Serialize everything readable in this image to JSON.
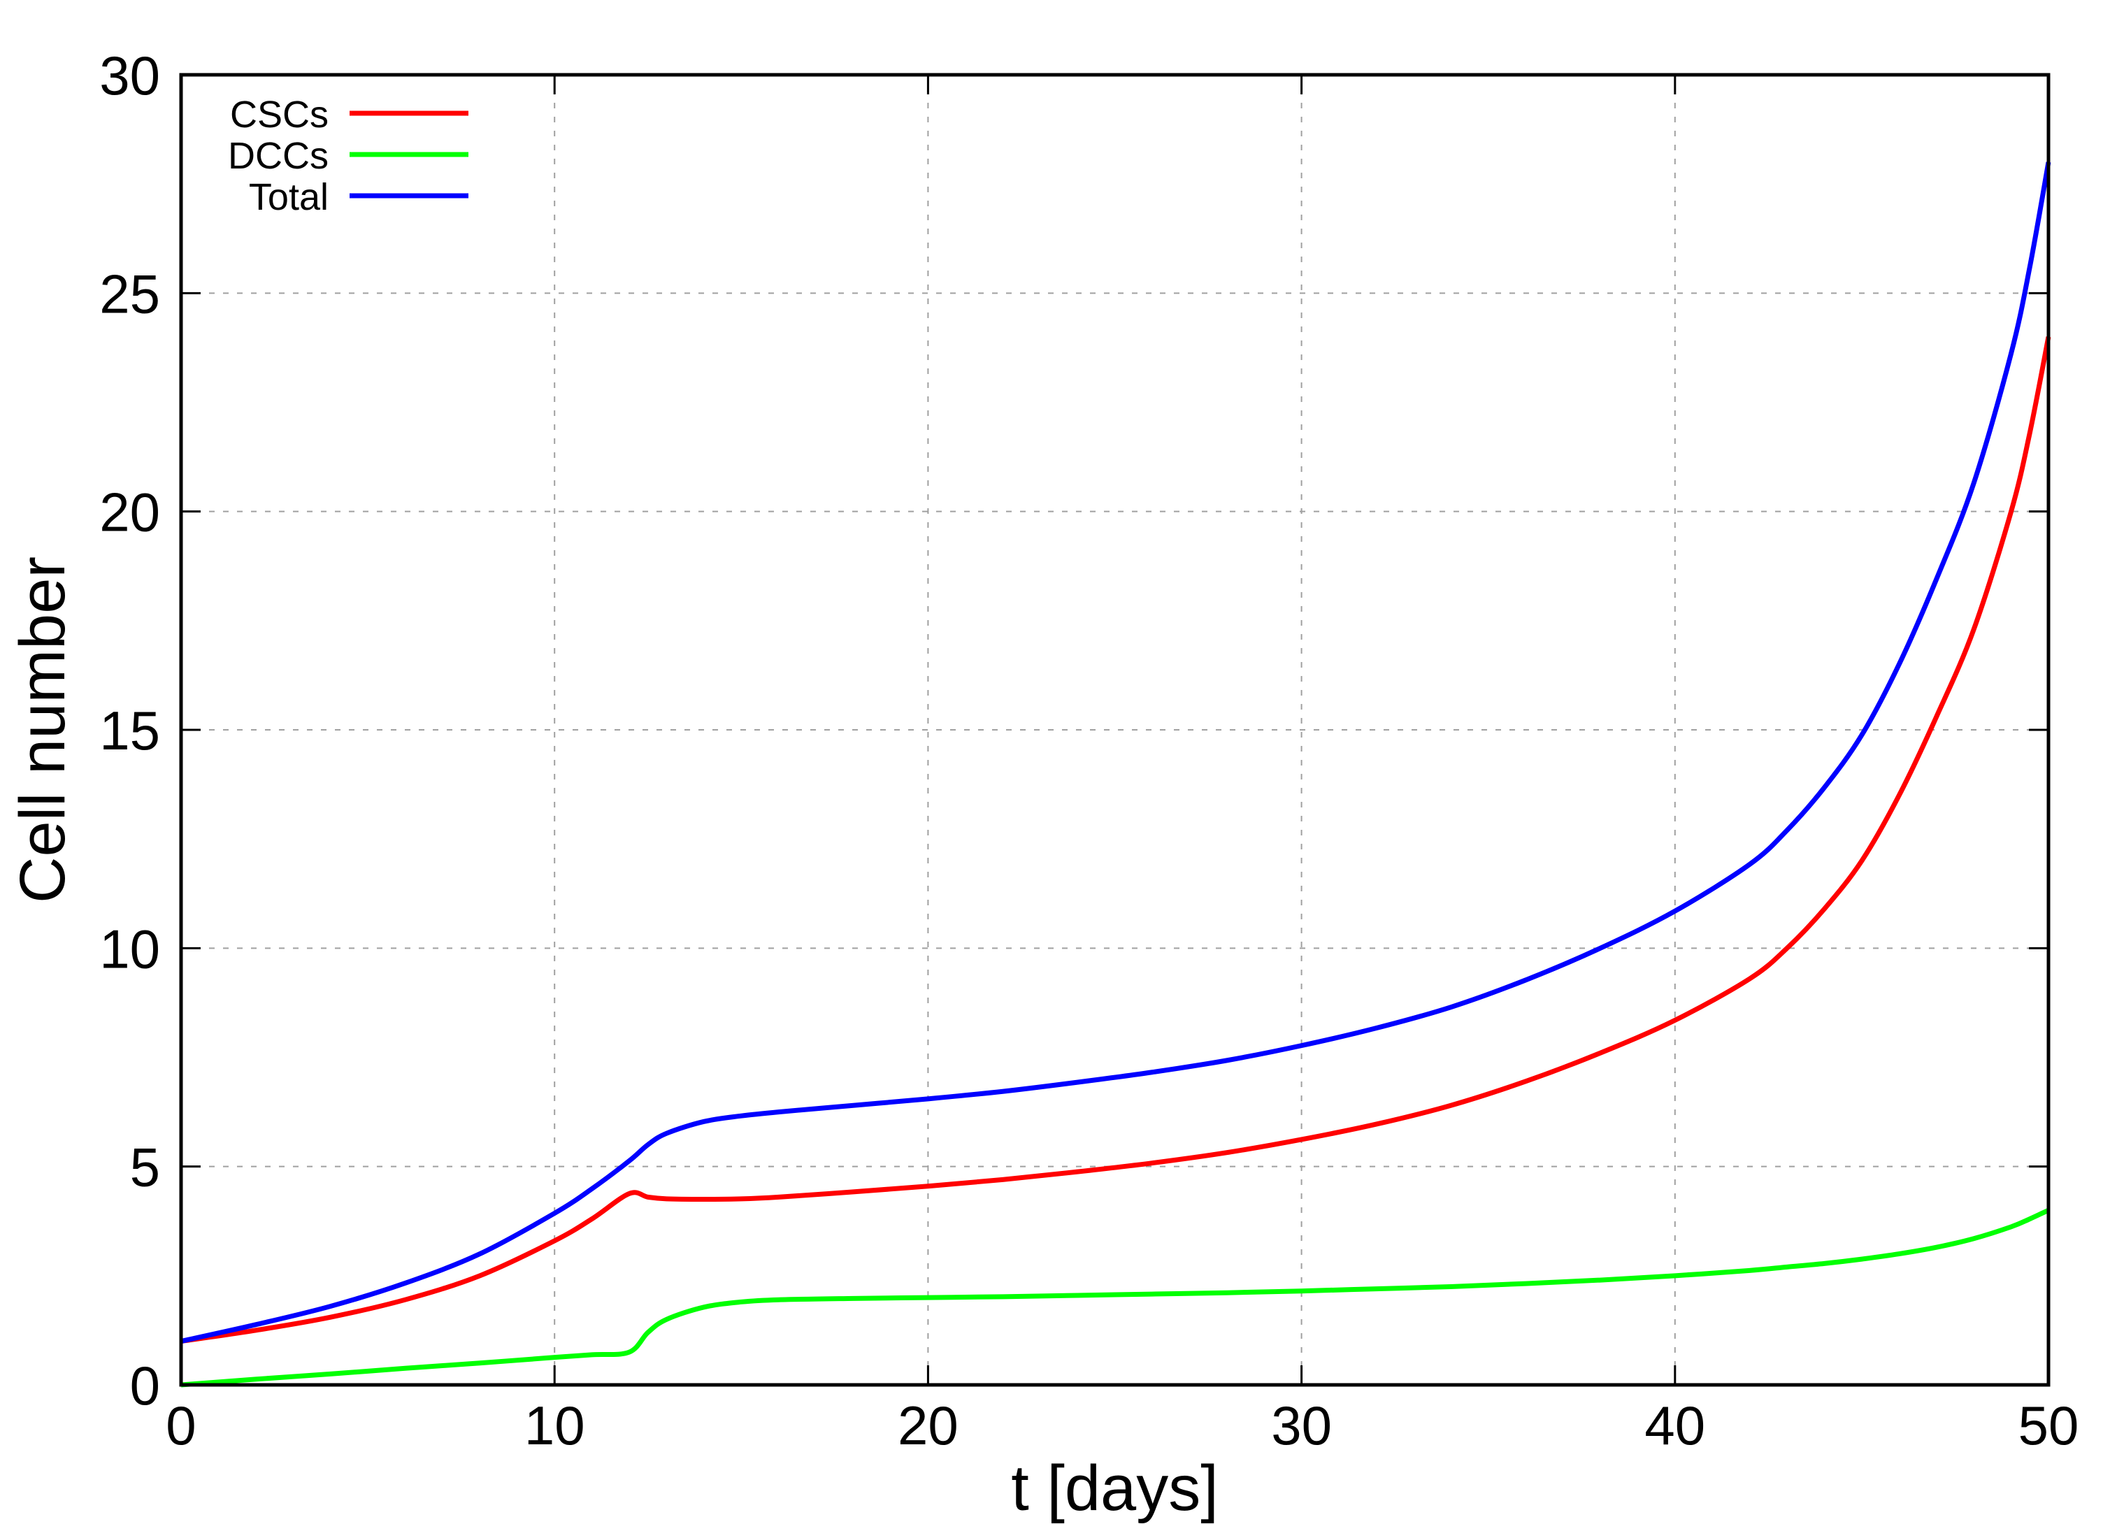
{
  "chart_data": {
    "type": "line",
    "title": "",
    "xlabel": "t [days]",
    "ylabel": "Cell number",
    "xlim": [
      0,
      50
    ],
    "ylim": [
      0,
      30
    ],
    "xticks": [
      0,
      10,
      20,
      30,
      40,
      50
    ],
    "yticks": [
      0,
      5,
      10,
      15,
      20,
      25,
      30
    ],
    "grid": true,
    "legend_position": "top-left",
    "x": [
      0,
      2,
      4,
      6,
      8,
      10,
      11,
      12,
      12.5,
      13,
      14,
      15,
      16,
      18,
      20,
      22,
      24,
      26,
      28,
      30,
      32,
      34,
      36,
      38,
      40,
      42,
      43,
      44,
      45,
      46,
      47,
      48,
      49,
      49.5,
      50
    ],
    "series": [
      {
        "name": "CSCs",
        "color": "#ff0000",
        "values": [
          1.0,
          1.25,
          1.55,
          1.95,
          2.5,
          3.3,
          3.8,
          4.38,
          4.3,
          4.26,
          4.25,
          4.26,
          4.3,
          4.42,
          4.55,
          4.7,
          4.88,
          5.08,
          5.32,
          5.62,
          5.97,
          6.4,
          6.95,
          7.6,
          8.35,
          9.3,
          10.0,
          10.9,
          12.0,
          13.5,
          15.3,
          17.3,
          20.0,
          21.8,
          24.0
        ]
      },
      {
        "name": "DCCs",
        "color": "#00ff00",
        "values": [
          0,
          0.13,
          0.25,
          0.38,
          0.5,
          0.63,
          0.69,
          0.75,
          1.2,
          1.5,
          1.78,
          1.9,
          1.95,
          1.98,
          2.0,
          2.02,
          2.05,
          2.08,
          2.11,
          2.15,
          2.2,
          2.25,
          2.32,
          2.4,
          2.5,
          2.62,
          2.7,
          2.78,
          2.88,
          3.0,
          3.15,
          3.35,
          3.62,
          3.8,
          4.0
        ]
      },
      {
        "name": "Total",
        "color": "#0000ff",
        "values": [
          1.0,
          1.38,
          1.8,
          2.33,
          3.0,
          3.93,
          4.49,
          5.13,
          5.5,
          5.76,
          6.03,
          6.16,
          6.25,
          6.4,
          6.55,
          6.72,
          6.93,
          7.16,
          7.43,
          7.77,
          8.17,
          8.65,
          9.27,
          10.0,
          10.85,
          11.92,
          12.7,
          13.68,
          14.88,
          16.5,
          18.45,
          20.65,
          23.62,
          25.6,
          28.0
        ]
      }
    ]
  }
}
